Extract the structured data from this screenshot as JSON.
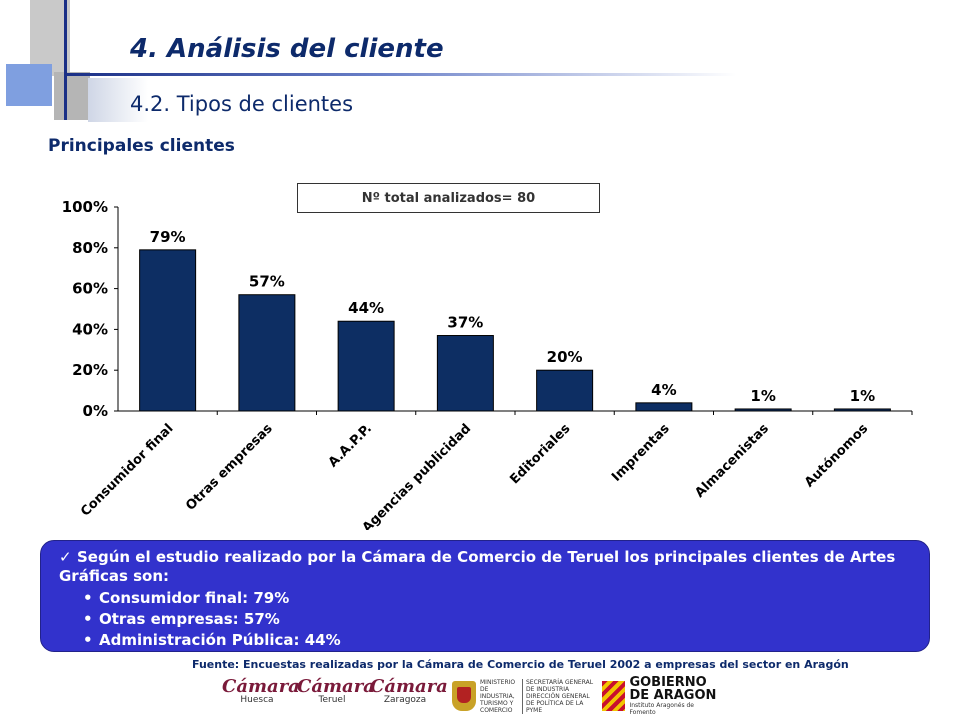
{
  "header": {
    "title": "4. Análisis del cliente",
    "subtitle": "4.2. Tipos de clientes",
    "section": "Principales clientes"
  },
  "chart_note": "Nº total analizados= 80",
  "chart_data": {
    "type": "bar",
    "categories": [
      "Consumidor final",
      "Otras empresas",
      "A.A.P.P.",
      "Agencias publicidad",
      "Editoriales",
      "Imprentas",
      "Almacenistas",
      "Autónomos"
    ],
    "values": [
      79,
      57,
      44,
      37,
      20,
      4,
      1,
      1
    ],
    "data_labels": [
      "79%",
      "57%",
      "44%",
      "37%",
      "20%",
      "4%",
      "1%",
      "1%"
    ],
    "yticks": [
      "0%",
      "20%",
      "40%",
      "60%",
      "80%",
      "100%"
    ],
    "ylim": [
      0,
      100
    ],
    "bar_color": "#0d2e63",
    "grid": false
  },
  "summary": {
    "intro": "Según el estudio realizado por la Cámara de Comercio de Teruel los principales clientes de Artes Gráficas son:",
    "items": [
      "Consumidor final: 79%",
      "Otras empresas: 57%",
      "Administración Pública: 44%"
    ]
  },
  "source": "Fuente: Encuestas realizadas por  la Cámara de Comercio de Teruel 2002 a empresas del sector en Aragón",
  "logos": {
    "camara_word": "Cámara",
    "camara_cities": [
      "Huesca",
      "Teruel",
      "Zaragoza"
    ],
    "ministerio_text": "MINISTERIO DE INDUSTRIA, TURISMO Y COMERCIO",
    "secretaria_text": "SECRETARÍA GENERAL DE INDUSTRIA DIRECCIÓN GENERAL DE POLÍTICA DE LA PYME",
    "gobierno_line1": "GOBIERNO",
    "gobierno_line2": "DE ARAGON",
    "instituto": "Instituto Aragonés de Fomento"
  },
  "colors": {
    "title": "#0d2a6b",
    "summary_bg": "#3232cc"
  }
}
